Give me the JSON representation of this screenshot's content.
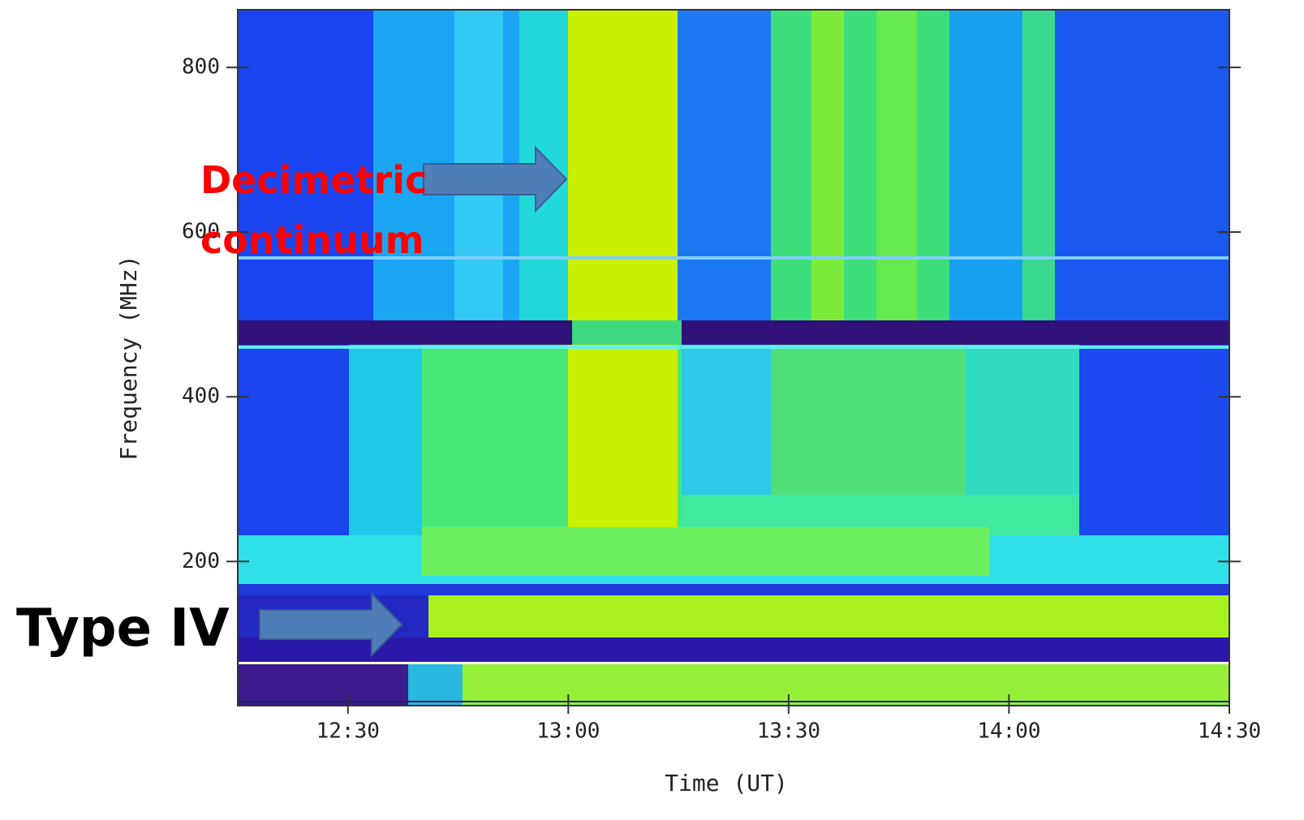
{
  "chart_data": {
    "type": "spectrogram",
    "xlabel": "Time (UT)",
    "ylabel": "Frequency (MHz)",
    "xlim": [
      735,
      870
    ],
    "xticks": [
      {
        "value": 750,
        "label": "12:30"
      },
      {
        "value": 780,
        "label": "13:00"
      },
      {
        "value": 810,
        "label": "13:30"
      },
      {
        "value": 840,
        "label": "14:00"
      },
      {
        "value": 870,
        "label": "14:30"
      }
    ],
    "ylim": [
      25,
      870
    ],
    "yticks": [
      200,
      400,
      600,
      800
    ],
    "annotations": [
      {
        "lines": [
          "Decimetric",
          "continuum"
        ],
        "color": "#ff0000"
      },
      {
        "lines": [
          "Type IV"
        ],
        "color": "#000000"
      }
    ]
  }
}
